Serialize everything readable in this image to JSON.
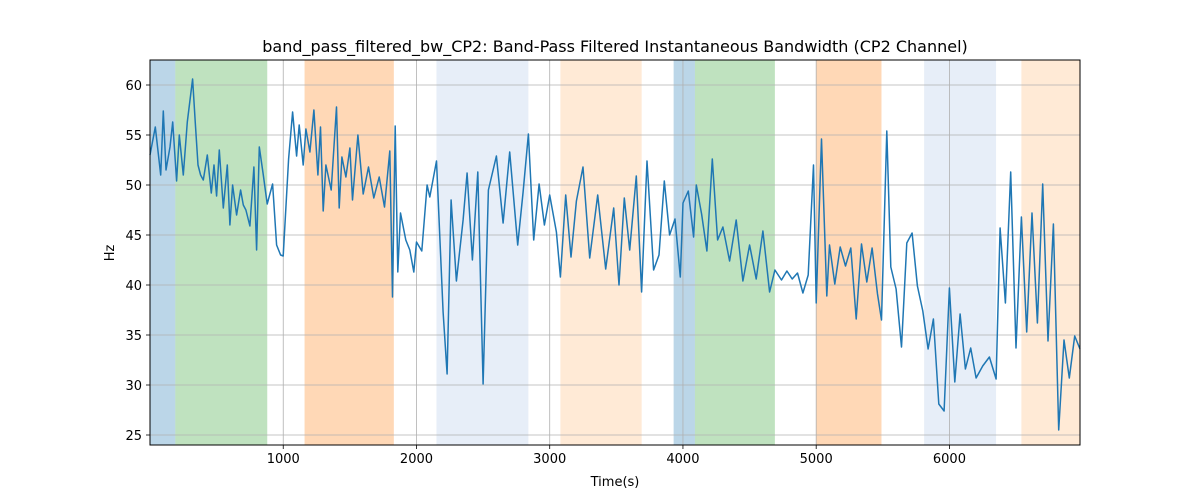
{
  "chart_data": {
    "type": "line",
    "title": "band_pass_filtered_bw_CP2: Band-Pass Filtered Instantaneous Bandwidth (CP2 Channel)",
    "xlabel": "Time(s)",
    "ylabel": "Hz",
    "xlim": [
      0,
      6980
    ],
    "ylim": [
      24,
      62.5
    ],
    "grid": true,
    "xticks": [
      1000,
      2000,
      3000,
      4000,
      5000,
      6000
    ],
    "yticks": [
      25,
      30,
      35,
      40,
      45,
      50,
      55,
      60
    ],
    "line_color": "#1f77b4",
    "bands": [
      {
        "start": 0,
        "end": 190,
        "color": "#1f77b4",
        "alpha": 0.3
      },
      {
        "start": 190,
        "end": 880,
        "color": "#2ca02c",
        "alpha": 0.3
      },
      {
        "start": 1160,
        "end": 1830,
        "color": "#ff7f0e",
        "alpha": 0.3
      },
      {
        "start": 2150,
        "end": 2840,
        "color": "#aec7e8",
        "alpha": 0.3
      },
      {
        "start": 3080,
        "end": 3690,
        "color": "#ffbb78",
        "alpha": 0.3
      },
      {
        "start": 3930,
        "end": 4090,
        "color": "#1f77b4",
        "alpha": 0.3
      },
      {
        "start": 4090,
        "end": 4690,
        "color": "#2ca02c",
        "alpha": 0.3
      },
      {
        "start": 5000,
        "end": 5490,
        "color": "#ff7f0e",
        "alpha": 0.3
      },
      {
        "start": 5810,
        "end": 6350,
        "color": "#aec7e8",
        "alpha": 0.3
      },
      {
        "start": 6540,
        "end": 6980,
        "color": "#ffbb78",
        "alpha": 0.3
      }
    ],
    "series": [
      {
        "name": "band_pass_filtered_bw_CP2",
        "x": [
          0,
          40,
          80,
          100,
          120,
          150,
          170,
          200,
          220,
          250,
          280,
          320,
          340,
          360,
          380,
          400,
          430,
          460,
          480,
          500,
          520,
          550,
          580,
          600,
          620,
          650,
          680,
          700,
          720,
          750,
          780,
          800,
          820,
          850,
          880,
          920,
          950,
          980,
          1000,
          1040,
          1070,
          1100,
          1120,
          1150,
          1170,
          1200,
          1230,
          1260,
          1280,
          1300,
          1320,
          1360,
          1400,
          1420,
          1440,
          1470,
          1500,
          1520,
          1560,
          1600,
          1640,
          1680,
          1720,
          1760,
          1800,
          1820,
          1840,
          1860,
          1880,
          1920,
          1950,
          1980,
          2000,
          2040,
          2080,
          2100,
          2150,
          2200,
          2230,
          2260,
          2300,
          2350,
          2380,
          2420,
          2460,
          2500,
          2540,
          2600,
          2650,
          2700,
          2760,
          2800,
          2840,
          2880,
          2920,
          2960,
          3000,
          3050,
          3080,
          3120,
          3160,
          3200,
          3250,
          3300,
          3360,
          3420,
          3480,
          3520,
          3560,
          3600,
          3650,
          3690,
          3730,
          3780,
          3820,
          3860,
          3900,
          3940,
          3980,
          4000,
          4040,
          4080,
          4100,
          4140,
          4180,
          4220,
          4260,
          4300,
          4350,
          4400,
          4450,
          4500,
          4550,
          4600,
          4650,
          4690,
          4740,
          4780,
          4820,
          4860,
          4900,
          4940,
          4980,
          5000,
          5040,
          5080,
          5100,
          5140,
          5180,
          5220,
          5260,
          5300,
          5340,
          5380,
          5420,
          5460,
          5490,
          5530,
          5560,
          5600,
          5640,
          5680,
          5720,
          5760,
          5800,
          5840,
          5880,
          5920,
          5960,
          6000,
          6040,
          6080,
          6120,
          6160,
          6200,
          6250,
          6300,
          6350,
          6380,
          6420,
          6460,
          6500,
          6540,
          6580,
          6620,
          6660,
          6700,
          6740,
          6780,
          6820,
          6860,
          6900,
          6940,
          6980
        ],
        "y": [
          53,
          55.8,
          51,
          57.4,
          51.5,
          53.8,
          56.3,
          50.4,
          55,
          51,
          56.3,
          60.6,
          56.2,
          52,
          51,
          50.5,
          53,
          49.2,
          52,
          48.9,
          53.5,
          47.7,
          52,
          46,
          50,
          47,
          49.5,
          48,
          47.5,
          45.9,
          51.8,
          43.5,
          53.8,
          51,
          48.1,
          50.1,
          44,
          43,
          42.9,
          52.6,
          57.3,
          52.9,
          56,
          52,
          55.6,
          53.3,
          57.5,
          51,
          55.8,
          47.4,
          52,
          49.5,
          57.8,
          47.7,
          52.8,
          50.8,
          53.7,
          48.5,
          55,
          49.1,
          51.8,
          48.7,
          50.8,
          47.8,
          53.4,
          38.8,
          55.9,
          41.3,
          47.2,
          44.5,
          43.5,
          41.3,
          44.3,
          43.4,
          50,
          48.8,
          52.4,
          37.3,
          31.1,
          48.5,
          40.4,
          46.5,
          51.2,
          42.5,
          51.3,
          30.1,
          49.5,
          52.9,
          46.2,
          53.3,
          44,
          49.3,
          55.1,
          44.5,
          50.1,
          46,
          49,
          45.3,
          40.8,
          49,
          42.8,
          48.4,
          51.8,
          42.7,
          49,
          41.6,
          47.7,
          40,
          48.7,
          43.5,
          50.9,
          39.3,
          52.4,
          41.5,
          43,
          50.4,
          45,
          46.6,
          40.8,
          48.2,
          49.4,
          44.8,
          50,
          47.1,
          43.4,
          52.6,
          44.5,
          45.8,
          42.4,
          46.5,
          40.4,
          44,
          40.6,
          45.4,
          39.3,
          41.5,
          40.5,
          41.4,
          40.6,
          41.2,
          39.2,
          41,
          52,
          38.2,
          54.6,
          38.9,
          44,
          40.1,
          43.8,
          41.9,
          43.7,
          36.6,
          44.1,
          40.3,
          43.7,
          39.1,
          36.5,
          55.4,
          41.8,
          39.6,
          33.8,
          44.2,
          45.2,
          39.9,
          37.4,
          33.6,
          36.6,
          28.1,
          27.4,
          39.7,
          30.3,
          37.1,
          31.6,
          33.7,
          30.7,
          31.9,
          32.8,
          30.6,
          45.7,
          38.2,
          51.3,
          33.7,
          46.8,
          35.3,
          47.2,
          36.2,
          50.1,
          34.4,
          46.1,
          25.5,
          34.5,
          30.7,
          34.9,
          33.6
        ]
      }
    ]
  }
}
